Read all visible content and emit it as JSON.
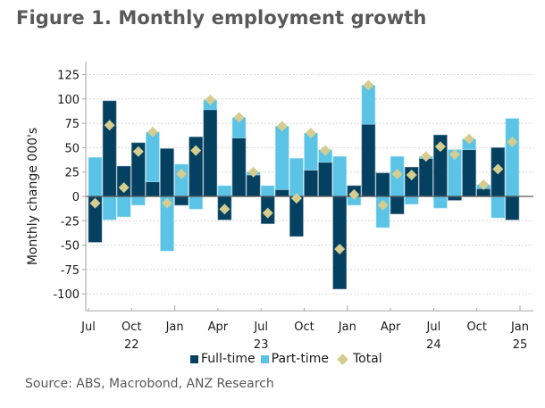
{
  "title": "Figure 1. Monthly employment growth",
  "source": "Source: ABS, Macrobond, ANZ Research",
  "colors": {
    "full_time": "#04405f",
    "part_time": "#5ac3e6",
    "total": "#d4cd8f",
    "grid": "#d9d9d9",
    "axis": "#a6a6a6",
    "zero_line": "#5a5a5a"
  },
  "legend": [
    {
      "label": "Full-time",
      "key": "full_time",
      "shape": "square"
    },
    {
      "label": "Part-time",
      "key": "part_time",
      "shape": "square"
    },
    {
      "label": "Total",
      "key": "total",
      "shape": "diamond"
    }
  ],
  "chart_data": {
    "type": "bar",
    "stacked": true,
    "title": "Figure 1. Monthly employment growth",
    "xlabel": "",
    "ylabel": "Monthly change 000's",
    "ylim": [
      -110,
      135
    ],
    "yticks": [
      -100,
      -75,
      -50,
      -25,
      0,
      25,
      50,
      75,
      100,
      125
    ],
    "grid": true,
    "legend_position": "bottom",
    "categories": [
      "Jul 22",
      "Aug 22",
      "Sep 22",
      "Oct 22",
      "Nov 22",
      "Dec 22",
      "Jan 23",
      "Feb 23",
      "Mar 23",
      "Apr 23",
      "May 23",
      "Jun 23",
      "Jul 23",
      "Aug 23",
      "Sep 23",
      "Oct 23",
      "Nov 23",
      "Dec 23",
      "Jan 24",
      "Feb 24",
      "Mar 24",
      "Apr 24",
      "May 24",
      "Jun 24",
      "Jul 24",
      "Aug 24",
      "Sep 24",
      "Oct 24",
      "Nov 24",
      "Dec 24"
    ],
    "xtick_labels": [
      {
        "month": "Jul",
        "year": "",
        "index": 0
      },
      {
        "month": "Oct",
        "year": "22",
        "index": 3
      },
      {
        "month": "Jan",
        "year": "",
        "index": 6
      },
      {
        "month": "Apr",
        "year": "",
        "index": 9
      },
      {
        "month": "Jul",
        "year": "23",
        "index": 12
      },
      {
        "month": "Oct",
        "year": "",
        "index": 15
      },
      {
        "month": "Jan",
        "year": "",
        "index": 18
      },
      {
        "month": "Apr",
        "year": "",
        "index": 21
      },
      {
        "month": "Jul",
        "year": "24",
        "index": 24
      },
      {
        "month": "Oct",
        "year": "",
        "index": 27
      },
      {
        "month": "Jan",
        "year": "25",
        "index": 30
      }
    ],
    "series": [
      {
        "name": "Full-time",
        "key": "full_time",
        "kind": "bar",
        "values": [
          -47,
          98,
          31,
          55,
          15,
          49,
          -9,
          61,
          89,
          -24,
          60,
          22,
          -28,
          7,
          -41,
          27,
          35,
          -95,
          11,
          74,
          24,
          -18,
          30,
          39,
          63,
          -4,
          48,
          8,
          50,
          -24
        ]
      },
      {
        "name": "Part-time",
        "key": "part_time",
        "kind": "bar",
        "values": [
          40,
          -24,
          -21,
          -9,
          51,
          -56,
          33,
          -13,
          10,
          11,
          21,
          3,
          11,
          65,
          39,
          38,
          13,
          41,
          -9,
          40,
          -32,
          41,
          -8,
          2,
          -12,
          48,
          11,
          4,
          -22,
          80
        ]
      },
      {
        "name": "Total",
        "key": "total",
        "kind": "marker",
        "values": [
          -7,
          73,
          9,
          46,
          66,
          -7,
          23,
          47,
          99,
          -13,
          81,
          25,
          -17,
          72,
          -2,
          65,
          47,
          -54,
          2,
          114,
          -9,
          23,
          22,
          41,
          51,
          43,
          59,
          12,
          28,
          56
        ]
      }
    ]
  }
}
